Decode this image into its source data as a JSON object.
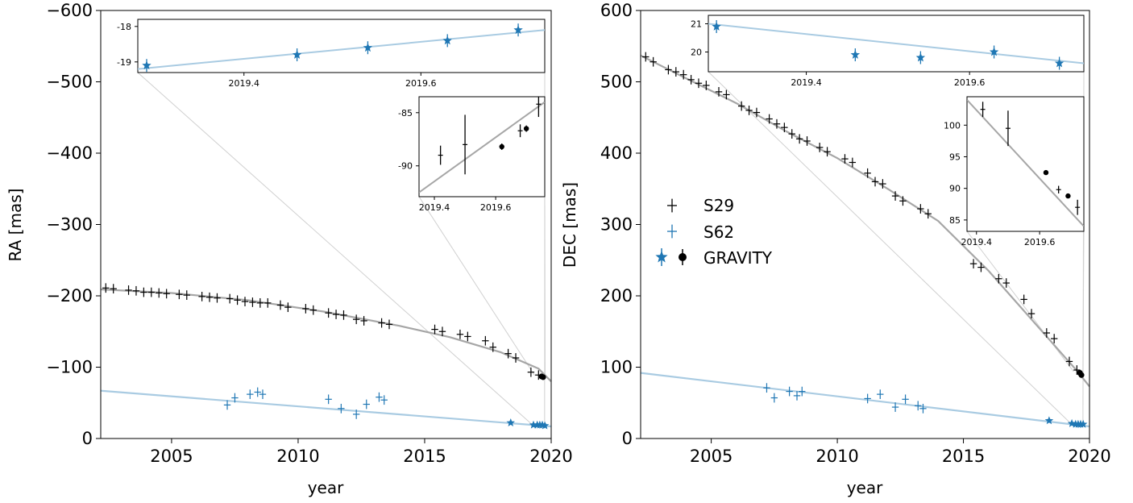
{
  "chart_data": [
    {
      "id": "ra",
      "type": "scatter",
      "xlabel": "year",
      "ylabel": "RA [mas]",
      "xlim": [
        2002.2,
        2020.0
      ],
      "ylim": [
        0,
        -600
      ],
      "inverted_y": true,
      "x_ticks": [
        "2005",
        "2010",
        "2015",
        "2020"
      ],
      "y_ticks": [
        "0",
        "−100",
        "−200",
        "−300",
        "−400",
        "−500",
        "−600"
      ],
      "x_tick_values": [
        2005,
        2010,
        2015,
        2020
      ],
      "y_tick_values": [
        0,
        -100,
        -200,
        -300,
        -400,
        -500,
        -600
      ],
      "fit_lines": [
        {
          "series": "S29",
          "color": "#a6a6a6",
          "points": [
            [
              2002.2,
              -209
            ],
            [
              2005,
              -204
            ],
            [
              2008,
              -194
            ],
            [
              2011,
              -178
            ],
            [
              2014,
              -158
            ],
            [
              2016,
              -142
            ],
            [
              2018,
              -121
            ],
            [
              2019.5,
              -98
            ],
            [
              2020,
              -80
            ]
          ]
        },
        {
          "series": "S62",
          "color": "#a9cbe2",
          "points": [
            [
              2002.2,
              -67
            ],
            [
              2020,
              -17
            ]
          ]
        }
      ],
      "series": [
        {
          "name": "S29",
          "color": "#000000",
          "marker": "plus",
          "x": [
            2002.4,
            2002.7,
            2003.3,
            2003.6,
            2003.9,
            2004.2,
            2004.5,
            2004.8,
            2005.3,
            2005.6,
            2006.2,
            2006.5,
            2006.8,
            2007.3,
            2007.6,
            2007.9,
            2008.2,
            2008.5,
            2008.8,
            2009.3,
            2009.6,
            2010.3,
            2010.6,
            2011.2,
            2011.5,
            2011.8,
            2012.3,
            2012.6,
            2013.3,
            2013.6,
            2015.4,
            2015.7,
            2016.4,
            2016.7,
            2017.4,
            2017.7,
            2018.3,
            2018.6,
            2019.2,
            2019.5
          ],
          "y": [
            -211,
            -210,
            -208,
            -207,
            -205,
            -205,
            -204,
            -203,
            -202,
            -201,
            -199,
            -198,
            -197,
            -196,
            -194,
            -192,
            -191,
            -190,
            -190,
            -187,
            -184,
            -182,
            -180,
            -176,
            -174,
            -173,
            -167,
            -165,
            -162,
            -160,
            -153,
            -150,
            -146,
            -143,
            -137,
            -128,
            -119,
            -113,
            -93,
            -89
          ]
        },
        {
          "name": "S62",
          "color": "#1f77b4",
          "marker": "plus",
          "x": [
            2007.2,
            2007.5,
            2008.1,
            2008.4,
            2008.6,
            2011.2,
            2011.7,
            2012.3,
            2012.7,
            2013.2,
            2013.4
          ],
          "y": [
            -47,
            -57,
            -62,
            -65,
            -62,
            -55,
            -42,
            -34,
            -48,
            -58,
            -54
          ]
        },
        {
          "name": "GRAVITY",
          "color": "#1f77b4",
          "marker": "star",
          "x": [
            2018.4,
            2019.3,
            2019.45,
            2019.55,
            2019.65,
            2019.75
          ],
          "y": [
            -22,
            -19,
            -19,
            -19,
            -19,
            -18
          ]
        },
        {
          "name": "GRAVITY",
          "color": "#000000",
          "marker": "dot",
          "x": [
            2019.62,
            2019.68
          ],
          "y": [
            -87,
            -86
          ]
        }
      ],
      "insets": [
        {
          "id": "ra-inset-top",
          "xlim": [
            2019.28,
            2019.74
          ],
          "ylim": [
            -19.3,
            -17.8
          ],
          "x_ticks": [
            "2019.4",
            "2019.6"
          ],
          "x_tick_values": [
            2019.4,
            2019.6
          ],
          "y_ticks": [
            "-19",
            "-18"
          ],
          "y_tick_values": [
            -19,
            -18
          ],
          "fit": [
            [
              2019.28,
              -19.2
            ],
            [
              2019.74,
              -18.1
            ]
          ],
          "fit_color": "#a9cbe2",
          "points": [
            {
              "x": 2019.29,
              "y": -19.1
            },
            {
              "x": 2019.46,
              "y": -18.8
            },
            {
              "x": 2019.54,
              "y": -18.6
            },
            {
              "x": 2019.63,
              "y": -18.4
            },
            {
              "x": 2019.71,
              "y": -18.1
            }
          ],
          "marker": "star",
          "color": "#1f77b4"
        },
        {
          "id": "ra-inset-bottom",
          "xlim": [
            2019.35,
            2019.76
          ],
          "ylim": [
            -92.9,
            -83.5
          ],
          "x_ticks": [
            "2019.4",
            "2019.6"
          ],
          "x_tick_values": [
            2019.4,
            2019.6
          ],
          "y_ticks": [
            "-90",
            "-85"
          ],
          "y_tick_values": [
            -90,
            -85
          ],
          "fit": [
            [
              2019.35,
              -92.5
            ],
            [
              2019.76,
              -84.0
            ]
          ],
          "fit_color": "#a6a6a6",
          "points": [
            {
              "x": 2019.42,
              "y": -89.0,
              "err": 0.9,
              "type": "cross"
            },
            {
              "x": 2019.5,
              "y": -88.0,
              "err": 2.8,
              "type": "cross"
            },
            {
              "x": 2019.62,
              "y": -88.2,
              "err": 0.3,
              "type": "dot"
            },
            {
              "x": 2019.68,
              "y": -86.7,
              "err": 0.6,
              "type": "cross"
            },
            {
              "x": 2019.7,
              "y": -86.5,
              "err": 0.3,
              "type": "dot"
            },
            {
              "x": 2019.74,
              "y": -84.2,
              "err": 1.2,
              "type": "cross"
            }
          ],
          "color": "#000000"
        }
      ]
    },
    {
      "id": "dec",
      "type": "scatter",
      "xlabel": "year",
      "ylabel": "DEC [mas]",
      "xlim": [
        2002.2,
        2020.0
      ],
      "ylim": [
        0,
        600
      ],
      "x_ticks": [
        "2005",
        "2010",
        "2015",
        "2020"
      ],
      "y_ticks": [
        "0",
        "100",
        "200",
        "300",
        "400",
        "500",
        "600"
      ],
      "x_tick_values": [
        2005,
        2010,
        2015,
        2020
      ],
      "y_tick_values": [
        0,
        100,
        200,
        300,
        400,
        500,
        600
      ],
      "legend": {
        "placement": "center-left",
        "entries": [
          "S29",
          "S62",
          "GRAVITY"
        ]
      },
      "fit_lines": [
        {
          "series": "S29",
          "color": "#a6a6a6",
          "points": [
            [
              2002.2,
              537
            ],
            [
              2004,
              505
            ],
            [
              2006,
              470
            ],
            [
              2008,
              430
            ],
            [
              2010,
              393
            ],
            [
              2012,
              350
            ],
            [
              2014,
              305
            ],
            [
              2016,
              235
            ],
            [
              2018,
              155
            ],
            [
              2019.5,
              95
            ],
            [
              2020,
              73
            ]
          ]
        },
        {
          "series": "S62",
          "color": "#a9cbe2",
          "points": [
            [
              2002.2,
              92
            ],
            [
              2020,
              17
            ]
          ]
        }
      ],
      "series": [
        {
          "name": "S29",
          "color": "#000000",
          "marker": "plus",
          "x": [
            2002.4,
            2002.7,
            2003.3,
            2003.6,
            2003.9,
            2004.2,
            2004.5,
            2004.8,
            2005.3,
            2005.6,
            2006.2,
            2006.5,
            2006.8,
            2007.3,
            2007.6,
            2007.9,
            2008.2,
            2008.5,
            2008.8,
            2009.3,
            2009.6,
            2010.3,
            2010.6,
            2011.2,
            2011.5,
            2011.8,
            2012.3,
            2012.6,
            2013.3,
            2013.6,
            2015.4,
            2015.7,
            2016.4,
            2016.7,
            2017.4,
            2017.7,
            2018.3,
            2018.6,
            2019.2,
            2019.5
          ],
          "y": [
            535,
            528,
            517,
            514,
            510,
            503,
            498,
            495,
            486,
            482,
            466,
            460,
            457,
            448,
            441,
            436,
            427,
            420,
            417,
            408,
            402,
            392,
            387,
            372,
            360,
            357,
            340,
            333,
            322,
            315,
            245,
            240,
            224,
            218,
            195,
            175,
            148,
            140,
            108,
            96
          ]
        },
        {
          "name": "S62",
          "color": "#1f77b4",
          "marker": "plus",
          "x": [
            2007.2,
            2007.5,
            2008.1,
            2008.4,
            2008.6,
            2011.2,
            2011.7,
            2012.3,
            2012.7,
            2013.2,
            2013.4
          ],
          "y": [
            71,
            57,
            66,
            60,
            66,
            56,
            62,
            44,
            55,
            46,
            42
          ]
        },
        {
          "name": "GRAVITY",
          "color": "#1f77b4",
          "marker": "star",
          "x": [
            2018.4,
            2019.3,
            2019.45,
            2019.55,
            2019.65,
            2019.75
          ],
          "y": [
            25,
            21,
            20,
            20,
            20,
            20
          ]
        },
        {
          "name": "GRAVITY",
          "color": "#000000",
          "marker": "dot",
          "x": [
            2019.62,
            2019.68
          ],
          "y": [
            92,
            89
          ]
        }
      ],
      "insets": [
        {
          "id": "dec-inset-top",
          "xlim": [
            2019.28,
            2019.74
          ],
          "ylim": [
            19.3,
            21.3
          ],
          "x_ticks": [
            "2019.4",
            "2019.6"
          ],
          "x_tick_values": [
            2019.4,
            2019.6
          ],
          "y_ticks": [
            "20",
            "21"
          ],
          "y_tick_values": [
            20,
            21
          ],
          "fit": [
            [
              2019.28,
              21.0
            ],
            [
              2019.74,
              19.6
            ]
          ],
          "fit_color": "#a9cbe2",
          "points": [
            {
              "x": 2019.29,
              "y": 20.9
            },
            {
              "x": 2019.46,
              "y": 19.9
            },
            {
              "x": 2019.54,
              "y": 19.8
            },
            {
              "x": 2019.63,
              "y": 20.0
            },
            {
              "x": 2019.71,
              "y": 19.6
            }
          ],
          "marker": "star",
          "color": "#1f77b4"
        },
        {
          "id": "dec-inset-bottom",
          "xlim": [
            2019.37,
            2019.74
          ],
          "ylim": [
            83.2,
            104.5
          ],
          "x_ticks": [
            "2019.4",
            "2019.6"
          ],
          "x_tick_values": [
            2019.4,
            2019.6
          ],
          "y_ticks": [
            "85",
            "90",
            "95",
            "100"
          ],
          "y_tick_values": [
            85,
            90,
            95,
            100
          ],
          "fit": [
            [
              2019.37,
              104.0
            ],
            [
              2019.74,
              84.0
            ]
          ],
          "fit_color": "#a6a6a6",
          "points": [
            {
              "x": 2019.42,
              "y": 102.5,
              "err": 1.2,
              "type": "cross"
            },
            {
              "x": 2019.5,
              "y": 99.5,
              "err": 2.8,
              "type": "cross"
            },
            {
              "x": 2019.62,
              "y": 92.5,
              "err": 0.3,
              "type": "dot"
            },
            {
              "x": 2019.66,
              "y": 89.8,
              "err": 0.6,
              "type": "cross"
            },
            {
              "x": 2019.69,
              "y": 88.8,
              "err": 0.3,
              "type": "dot"
            },
            {
              "x": 2019.72,
              "y": 87.0,
              "err": 1.2,
              "type": "cross"
            }
          ],
          "color": "#000000"
        }
      ]
    }
  ]
}
